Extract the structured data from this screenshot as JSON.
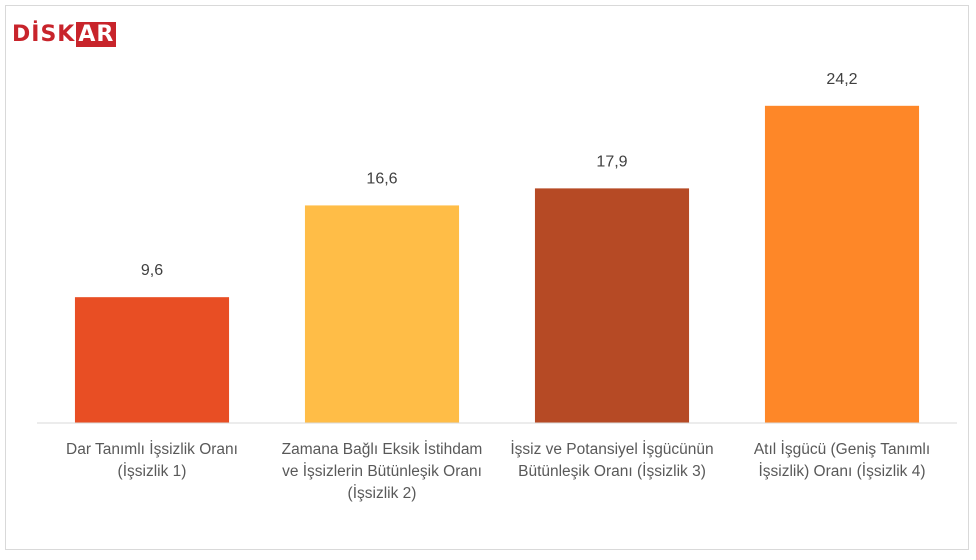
{
  "logo_parts": [
    "DİSK",
    "AR"
  ],
  "chart_data": {
    "type": "bar",
    "categories": [
      "Dar Tanımlı İşsizlik Oranı (İşsizlik 1)",
      "Zamana Bağlı Eksik İstihdam ve İşsizlerin Bütünleşik Oranı (İşsizlik 2)",
      "İşsiz ve Potansiyel İşgücünün Bütünleşik Oranı (İşsizlik 3)",
      "Atıl İşgücü (Geniş Tanımlı İşsizlik) Oranı (İşsizlik 4)"
    ],
    "values": [
      9.6,
      16.6,
      17.9,
      24.2
    ],
    "value_labels": [
      "9,6",
      "16,6",
      "17,9",
      "24,2"
    ],
    "colors": [
      "#e84e24",
      "#ffbd47",
      "#b64a25",
      "#fe8728"
    ],
    "ylim": [
      0,
      28
    ],
    "grid": false
  }
}
